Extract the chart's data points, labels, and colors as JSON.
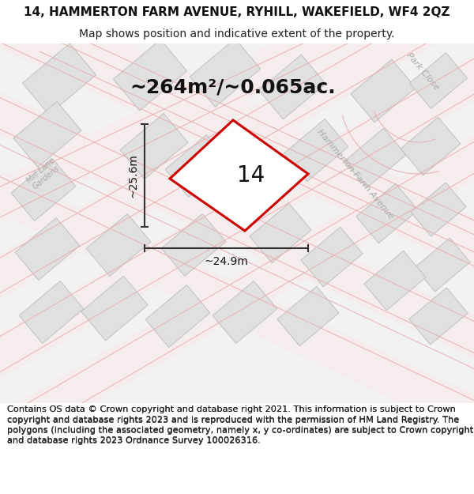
{
  "title_line1": "14, HAMMERTON FARM AVENUE, RYHILL, WAKEFIELD, WF4 2QZ",
  "title_line2": "Map shows position and indicative extent of the property.",
  "area_text": "~264m²/~0.065ac.",
  "width_label": "~24.9m",
  "height_label": "~25.6m",
  "plot_number": "14",
  "footer_text": "Contains OS data © Crown copyright and database right 2021. This information is subject to Crown copyright and database rights 2023 and is reproduced with the permission of HM Land Registry. The polygons (including the associated geometry, namely x, y co-ordinates) are subject to Crown copyright and database rights 2023 Ordnance Survey 100026316.",
  "map_bg": "#f0f0f0",
  "block_color": "#e0e0e0",
  "block_outline": "#c0c0c0",
  "road_fill": "#f9f0f0",
  "road_line": "#f0b0b0",
  "road_line2": "#e08080",
  "plot_outline_color": "#cc0000",
  "dimension_line_color": "#333333",
  "title_fontsize": 11,
  "subtitle_fontsize": 10,
  "area_fontsize": 18,
  "plot_num_fontsize": 20,
  "dim_fontsize": 10,
  "footer_fontsize": 8.2,
  "street_label_color": "#aaaaaa",
  "street_label_size": 8
}
